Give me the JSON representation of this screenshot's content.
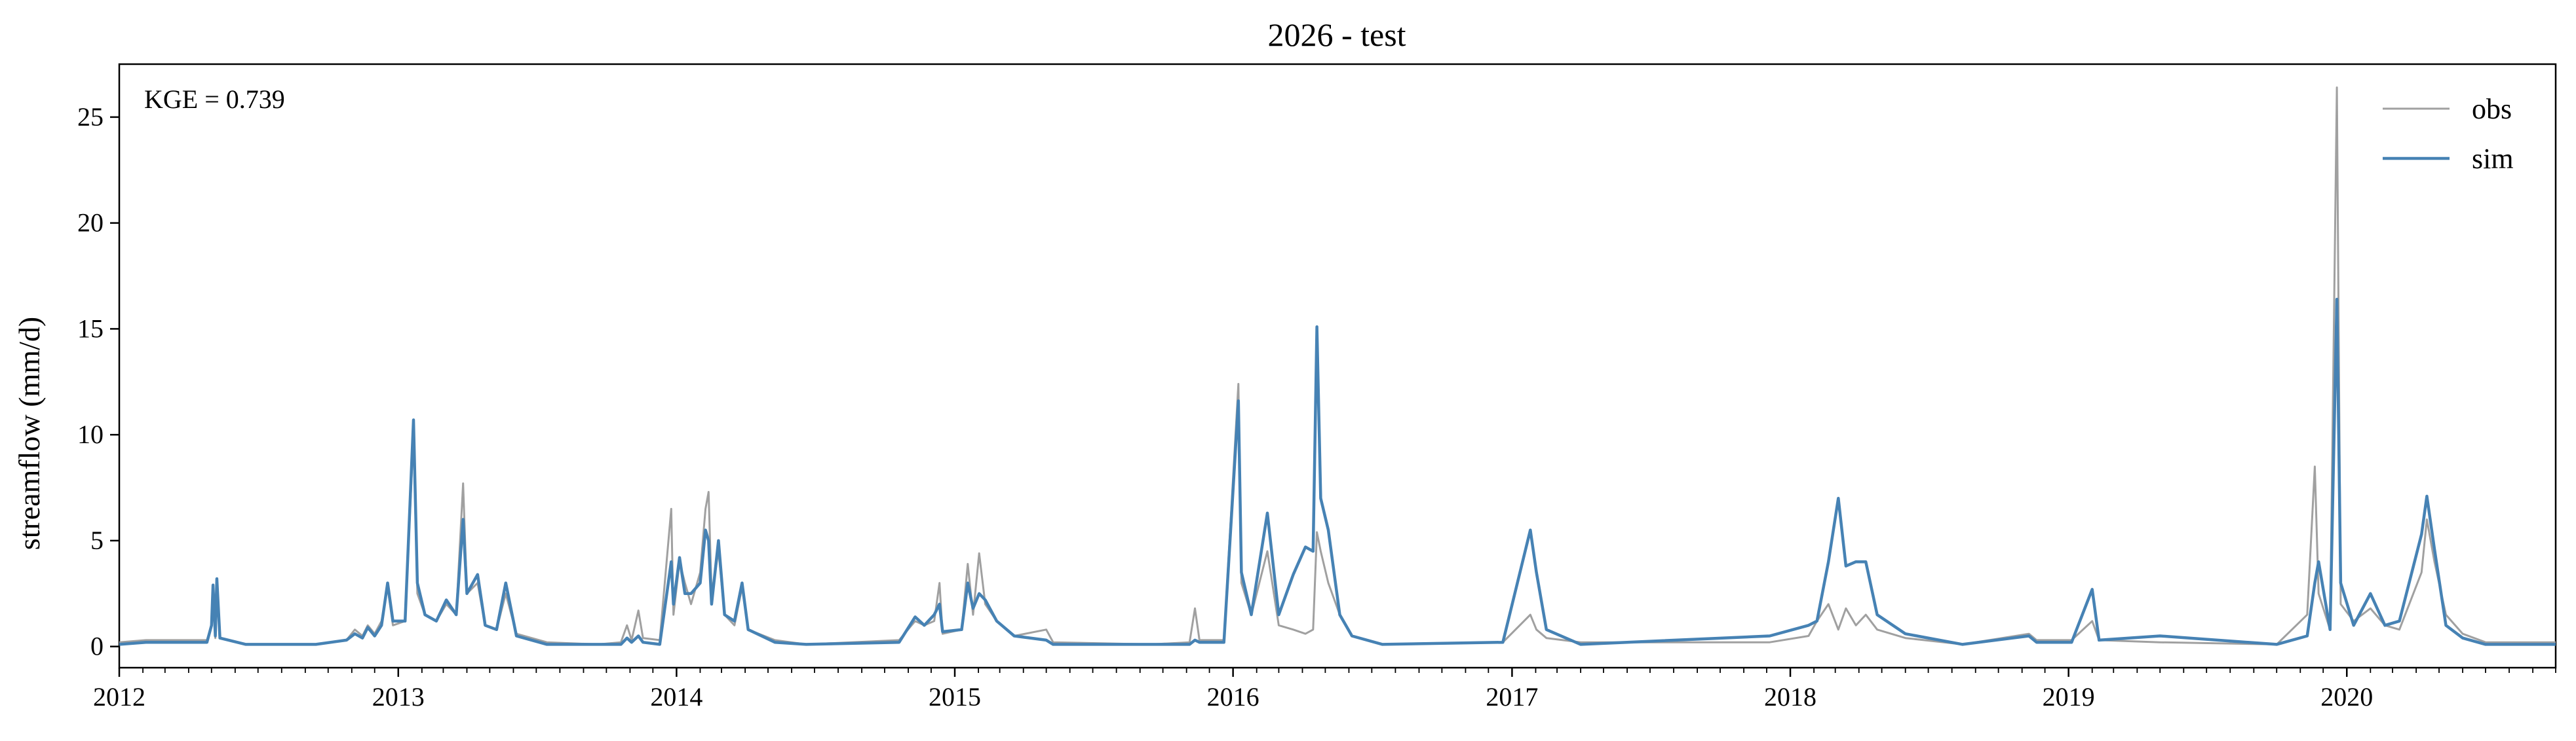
{
  "chart_data": {
    "type": "line",
    "title": "2026 - test",
    "xlabel": "",
    "ylabel": "streamflow (mm/d)",
    "annotation": "KGE = 0.739",
    "xlim": [
      "2012-01-01",
      "2020-10-01"
    ],
    "ylim": [
      -1,
      27.5
    ],
    "x_ticks": [
      "2012",
      "2013",
      "2014",
      "2015",
      "2016",
      "2017",
      "2018",
      "2019",
      "2020"
    ],
    "y_ticks": [
      0,
      5,
      10,
      15,
      20,
      25
    ],
    "grid": false,
    "legend_position": "top-right",
    "series": [
      {
        "name": "obs",
        "color": "#a0a0a0",
        "points": [
          [
            "2012-01-01",
            0.2
          ],
          [
            "2012-02-05",
            0.3
          ],
          [
            "2012-04-25",
            0.3
          ],
          [
            "2012-05-01",
            1.0
          ],
          [
            "2012-05-03",
            2.8
          ],
          [
            "2012-05-06",
            0.4
          ],
          [
            "2012-05-08",
            3.0
          ],
          [
            "2012-05-12",
            0.4
          ],
          [
            "2012-06-15",
            0.1
          ],
          [
            "2012-09-15",
            0.1
          ],
          [
            "2012-10-25",
            0.3
          ],
          [
            "2012-11-05",
            0.8
          ],
          [
            "2012-11-15",
            0.5
          ],
          [
            "2012-11-22",
            1.0
          ],
          [
            "2012-12-01",
            0.6
          ],
          [
            "2012-12-10",
            1.2
          ],
          [
            "2012-12-18",
            2.8
          ],
          [
            "2012-12-25",
            1.0
          ],
          [
            "2013-01-10",
            1.2
          ],
          [
            "2013-01-21",
            10.0
          ],
          [
            "2013-01-26",
            2.5
          ],
          [
            "2013-02-05",
            1.5
          ],
          [
            "2013-02-20",
            1.2
          ],
          [
            "2013-03-05",
            2.0
          ],
          [
            "2013-03-18",
            1.5
          ],
          [
            "2013-03-27",
            7.7
          ],
          [
            "2013-04-01",
            2.5
          ],
          [
            "2013-04-15",
            3.0
          ],
          [
            "2013-04-25",
            1.0
          ],
          [
            "2013-05-10",
            0.8
          ],
          [
            "2013-05-22",
            2.5
          ],
          [
            "2013-06-05",
            0.6
          ],
          [
            "2013-07-15",
            0.2
          ],
          [
            "2013-09-20",
            0.1
          ],
          [
            "2013-10-20",
            0.2
          ],
          [
            "2013-10-28",
            1.0
          ],
          [
            "2013-11-03",
            0.3
          ],
          [
            "2013-11-12",
            1.7
          ],
          [
            "2013-11-18",
            0.4
          ],
          [
            "2013-12-10",
            0.3
          ],
          [
            "2013-12-25",
            6.5
          ],
          [
            "2013-12-28",
            1.5
          ],
          [
            "2014-01-05",
            4.0
          ],
          [
            "2014-01-12",
            3.0
          ],
          [
            "2014-01-20",
            2.0
          ],
          [
            "2014-02-01",
            3.5
          ],
          [
            "2014-02-08",
            6.5
          ],
          [
            "2014-02-12",
            7.3
          ],
          [
            "2014-02-16",
            2.5
          ],
          [
            "2014-02-25",
            4.5
          ],
          [
            "2014-03-05",
            1.5
          ],
          [
            "2014-03-18",
            1.0
          ],
          [
            "2014-03-28",
            2.8
          ],
          [
            "2014-04-05",
            0.8
          ],
          [
            "2014-05-10",
            0.3
          ],
          [
            "2014-06-20",
            0.1
          ],
          [
            "2014-10-20",
            0.3
          ],
          [
            "2014-11-10",
            1.2
          ],
          [
            "2014-11-22",
            1.0
          ],
          [
            "2014-12-05",
            1.2
          ],
          [
            "2014-12-12",
            3.0
          ],
          [
            "2014-12-16",
            0.6
          ],
          [
            "2015-01-10",
            0.8
          ],
          [
            "2015-01-18",
            3.9
          ],
          [
            "2015-01-25",
            1.5
          ],
          [
            "2015-02-02",
            4.4
          ],
          [
            "2015-02-10",
            2.0
          ],
          [
            "2015-02-25",
            1.2
          ],
          [
            "2015-03-20",
            0.5
          ],
          [
            "2015-05-01",
            0.8
          ],
          [
            "2015-05-10",
            0.2
          ],
          [
            "2015-09-15",
            0.1
          ],
          [
            "2015-11-05",
            0.2
          ],
          [
            "2015-11-12",
            1.8
          ],
          [
            "2015-11-18",
            0.3
          ],
          [
            "2015-12-20",
            0.3
          ],
          [
            "2016-01-08",
            12.4
          ],
          [
            "2016-01-12",
            3.0
          ],
          [
            "2016-01-25",
            1.5
          ],
          [
            "2016-02-15",
            4.5
          ],
          [
            "2016-03-01",
            1.0
          ],
          [
            "2016-03-20",
            0.8
          ],
          [
            "2016-04-05",
            0.6
          ],
          [
            "2016-04-15",
            0.8
          ],
          [
            "2016-04-20",
            5.4
          ],
          [
            "2016-04-25",
            4.5
          ],
          [
            "2016-05-05",
            3.0
          ],
          [
            "2016-05-20",
            1.5
          ],
          [
            "2016-06-05",
            0.5
          ],
          [
            "2016-07-15",
            0.1
          ],
          [
            "2016-12-20",
            0.2
          ],
          [
            "2017-01-25",
            1.5
          ],
          [
            "2017-02-02",
            0.8
          ],
          [
            "2017-02-15",
            0.4
          ],
          [
            "2017-04-01",
            0.2
          ],
          [
            "2017-12-05",
            0.2
          ],
          [
            "2018-01-25",
            0.5
          ],
          [
            "2018-02-05",
            1.2
          ],
          [
            "2018-02-20",
            2.0
          ],
          [
            "2018-03-05",
            0.8
          ],
          [
            "2018-03-15",
            1.8
          ],
          [
            "2018-03-28",
            1.0
          ],
          [
            "2018-04-10",
            1.5
          ],
          [
            "2018-04-25",
            0.8
          ],
          [
            "2018-06-01",
            0.4
          ],
          [
            "2018-08-15",
            0.1
          ],
          [
            "2018-11-10",
            0.6
          ],
          [
            "2018-11-20",
            0.3
          ],
          [
            "2019-01-05",
            0.3
          ],
          [
            "2019-02-01",
            1.2
          ],
          [
            "2019-02-10",
            0.3
          ],
          [
            "2019-05-01",
            0.2
          ],
          [
            "2019-10-01",
            0.1
          ],
          [
            "2019-11-10",
            1.5
          ],
          [
            "2019-11-20",
            8.5
          ],
          [
            "2019-11-25",
            2.5
          ],
          [
            "2019-12-10",
            0.8
          ],
          [
            "2019-12-19",
            26.4
          ],
          [
            "2019-12-24",
            2.0
          ],
          [
            "2020-01-10",
            1.2
          ],
          [
            "2020-02-01",
            1.8
          ],
          [
            "2020-02-20",
            1.0
          ],
          [
            "2020-03-10",
            0.8
          ],
          [
            "2020-04-08",
            3.5
          ],
          [
            "2020-04-15",
            6.0
          ],
          [
            "2020-04-25",
            4.0
          ],
          [
            "2020-05-10",
            1.5
          ],
          [
            "2020-06-01",
            0.6
          ],
          [
            "2020-07-01",
            0.2
          ],
          [
            "2020-10-01",
            0.2
          ]
        ]
      },
      {
        "name": "sim",
        "color": "#4682b4",
        "points": [
          [
            "2012-01-01",
            0.1
          ],
          [
            "2012-02-05",
            0.2
          ],
          [
            "2012-04-25",
            0.2
          ],
          [
            "2012-05-01",
            1.0
          ],
          [
            "2012-05-03",
            2.9
          ],
          [
            "2012-05-06",
            0.5
          ],
          [
            "2012-05-08",
            3.2
          ],
          [
            "2012-05-12",
            0.4
          ],
          [
            "2012-06-15",
            0.1
          ],
          [
            "2012-09-15",
            0.1
          ],
          [
            "2012-10-25",
            0.3
          ],
          [
            "2012-11-05",
            0.6
          ],
          [
            "2012-11-15",
            0.4
          ],
          [
            "2012-11-22",
            0.9
          ],
          [
            "2012-12-01",
            0.5
          ],
          [
            "2012-12-10",
            1.0
          ],
          [
            "2012-12-18",
            3.0
          ],
          [
            "2012-12-25",
            1.2
          ],
          [
            "2013-01-10",
            1.2
          ],
          [
            "2013-01-21",
            10.7
          ],
          [
            "2013-01-26",
            3.0
          ],
          [
            "2013-02-05",
            1.5
          ],
          [
            "2013-02-20",
            1.2
          ],
          [
            "2013-03-05",
            2.2
          ],
          [
            "2013-03-18",
            1.5
          ],
          [
            "2013-03-27",
            6.0
          ],
          [
            "2013-04-01",
            2.5
          ],
          [
            "2013-04-15",
            3.4
          ],
          [
            "2013-04-25",
            1.0
          ],
          [
            "2013-05-10",
            0.8
          ],
          [
            "2013-05-22",
            3.0
          ],
          [
            "2013-06-05",
            0.5
          ],
          [
            "2013-07-15",
            0.1
          ],
          [
            "2013-09-20",
            0.1
          ],
          [
            "2013-10-20",
            0.1
          ],
          [
            "2013-10-28",
            0.4
          ],
          [
            "2013-11-03",
            0.2
          ],
          [
            "2013-11-12",
            0.5
          ],
          [
            "2013-11-18",
            0.2
          ],
          [
            "2013-12-10",
            0.1
          ],
          [
            "2013-12-25",
            4.0
          ],
          [
            "2013-12-28",
            2.0
          ],
          [
            "2014-01-05",
            4.2
          ],
          [
            "2014-01-12",
            2.5
          ],
          [
            "2014-01-20",
            2.5
          ],
          [
            "2014-02-01",
            3.0
          ],
          [
            "2014-02-08",
            5.5
          ],
          [
            "2014-02-12",
            5.0
          ],
          [
            "2014-02-16",
            2.0
          ],
          [
            "2014-02-25",
            5.0
          ],
          [
            "2014-03-05",
            1.5
          ],
          [
            "2014-03-18",
            1.2
          ],
          [
            "2014-03-28",
            3.0
          ],
          [
            "2014-04-05",
            0.8
          ],
          [
            "2014-05-10",
            0.2
          ],
          [
            "2014-06-20",
            0.1
          ],
          [
            "2014-10-20",
            0.2
          ],
          [
            "2014-11-10",
            1.4
          ],
          [
            "2014-11-22",
            1.0
          ],
          [
            "2014-12-05",
            1.5
          ],
          [
            "2014-12-12",
            2.0
          ],
          [
            "2014-12-16",
            0.7
          ],
          [
            "2015-01-10",
            0.8
          ],
          [
            "2015-01-18",
            3.0
          ],
          [
            "2015-01-25",
            1.8
          ],
          [
            "2015-02-02",
            2.5
          ],
          [
            "2015-02-10",
            2.2
          ],
          [
            "2015-02-25",
            1.2
          ],
          [
            "2015-03-20",
            0.5
          ],
          [
            "2015-05-01",
            0.3
          ],
          [
            "2015-05-10",
            0.1
          ],
          [
            "2015-09-15",
            0.1
          ],
          [
            "2015-11-05",
            0.1
          ],
          [
            "2015-11-12",
            0.3
          ],
          [
            "2015-11-18",
            0.2
          ],
          [
            "2015-12-20",
            0.2
          ],
          [
            "2016-01-08",
            11.6
          ],
          [
            "2016-01-12",
            3.5
          ],
          [
            "2016-01-25",
            1.5
          ],
          [
            "2016-02-15",
            6.3
          ],
          [
            "2016-03-01",
            1.5
          ],
          [
            "2016-03-20",
            3.4
          ],
          [
            "2016-04-05",
            4.7
          ],
          [
            "2016-04-15",
            4.5
          ],
          [
            "2016-04-20",
            15.1
          ],
          [
            "2016-04-25",
            7.0
          ],
          [
            "2016-05-05",
            5.5
          ],
          [
            "2016-05-20",
            1.5
          ],
          [
            "2016-06-05",
            0.5
          ],
          [
            "2016-07-15",
            0.1
          ],
          [
            "2016-12-20",
            0.2
          ],
          [
            "2017-01-25",
            5.5
          ],
          [
            "2017-02-02",
            3.5
          ],
          [
            "2017-02-15",
            0.8
          ],
          [
            "2017-04-01",
            0.1
          ],
          [
            "2017-12-05",
            0.5
          ],
          [
            "2018-01-25",
            1.0
          ],
          [
            "2018-02-05",
            1.2
          ],
          [
            "2018-02-20",
            4.0
          ],
          [
            "2018-03-05",
            7.0
          ],
          [
            "2018-03-15",
            3.8
          ],
          [
            "2018-03-28",
            4.0
          ],
          [
            "2018-04-10",
            4.0
          ],
          [
            "2018-04-25",
            1.5
          ],
          [
            "2018-06-01",
            0.6
          ],
          [
            "2018-08-15",
            0.1
          ],
          [
            "2018-11-10",
            0.5
          ],
          [
            "2018-11-20",
            0.2
          ],
          [
            "2019-01-05",
            0.2
          ],
          [
            "2019-02-01",
            2.7
          ],
          [
            "2019-02-10",
            0.3
          ],
          [
            "2019-05-01",
            0.5
          ],
          [
            "2019-10-01",
            0.1
          ],
          [
            "2019-11-10",
            0.5
          ],
          [
            "2019-11-20",
            3.0
          ],
          [
            "2019-11-25",
            4.0
          ],
          [
            "2019-12-10",
            0.8
          ],
          [
            "2019-12-19",
            16.4
          ],
          [
            "2019-12-24",
            3.0
          ],
          [
            "2020-01-10",
            1.0
          ],
          [
            "2020-02-01",
            2.5
          ],
          [
            "2020-02-20",
            1.0
          ],
          [
            "2020-03-10",
            1.2
          ],
          [
            "2020-04-08",
            5.3
          ],
          [
            "2020-04-15",
            7.1
          ],
          [
            "2020-04-25",
            4.6
          ],
          [
            "2020-05-10",
            1.0
          ],
          [
            "2020-06-01",
            0.4
          ],
          [
            "2020-07-01",
            0.1
          ],
          [
            "2020-10-01",
            0.1
          ]
        ]
      }
    ]
  }
}
